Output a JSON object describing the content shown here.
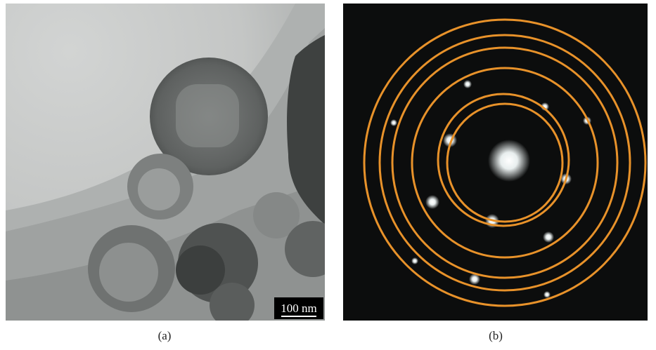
{
  "figure": {
    "panels": [
      {
        "label": "(a)",
        "scale_bar": "100 nm"
      },
      {
        "label": "(b)"
      }
    ]
  }
}
